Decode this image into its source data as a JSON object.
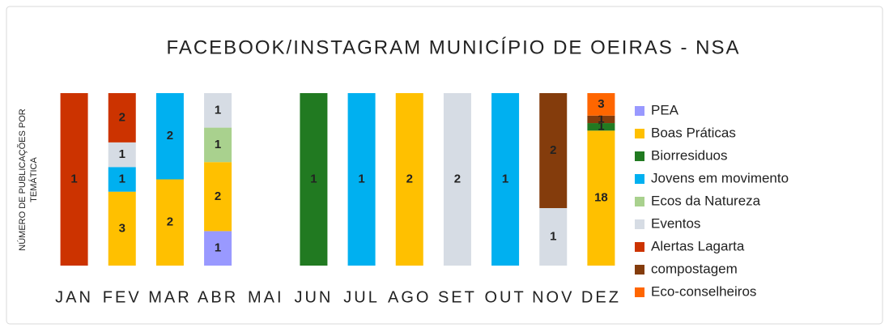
{
  "chart_data": {
    "type": "bar",
    "stacked": "percent",
    "title": "FACEBOOK/INSTAGRAM MUNICÍPIO DE OEIRAS - NSA",
    "y_label": [
      "NÚMERO DE PUBLICAÇÕES POR",
      "TEMÁTICA"
    ],
    "legend": "right",
    "categories": [
      "JAN",
      "FEV",
      "MAR",
      "ABR",
      "MAI",
      "JUN",
      "JUL",
      "AGO",
      "SET",
      "OUT",
      "NOV",
      "DEZ"
    ],
    "series": [
      {
        "name": "PEA",
        "color": "#9999ff",
        "values": [
          null,
          null,
          null,
          1,
          null,
          null,
          null,
          null,
          null,
          null,
          null,
          null
        ]
      },
      {
        "name": "Boas Práticas",
        "color": "#ffc000",
        "values": [
          null,
          3,
          2,
          2,
          null,
          null,
          null,
          2,
          null,
          null,
          null,
          18
        ]
      },
      {
        "name": "Biorresiduos",
        "color": "#217a21",
        "values": [
          null,
          null,
          null,
          null,
          null,
          1,
          null,
          null,
          null,
          null,
          null,
          1
        ]
      },
      {
        "name": "Jovens em movimento",
        "color": "#00b0f0",
        "values": [
          null,
          1,
          2,
          null,
          null,
          null,
          1,
          null,
          null,
          1,
          null,
          null
        ]
      },
      {
        "name": "Ecos da Natureza",
        "color": "#a9d18e",
        "values": [
          null,
          null,
          null,
          1,
          null,
          null,
          null,
          null,
          null,
          null,
          null,
          null
        ]
      },
      {
        "name": "Eventos",
        "color": "#d6dce4",
        "values": [
          null,
          1,
          null,
          1,
          null,
          null,
          null,
          null,
          2,
          null,
          1,
          null
        ]
      },
      {
        "name": "Alertas Lagarta",
        "color": "#cc3300",
        "values": [
          1,
          2,
          null,
          null,
          null,
          null,
          null,
          null,
          null,
          null,
          null,
          null
        ]
      },
      {
        "name": "compostagem",
        "color": "#843c0c",
        "values": [
          null,
          null,
          null,
          null,
          null,
          null,
          null,
          null,
          null,
          null,
          2,
          1
        ]
      },
      {
        "name": "Eco-conselheiros",
        "color": "#ff6600",
        "values": [
          null,
          null,
          null,
          null,
          null,
          null,
          null,
          null,
          null,
          null,
          null,
          3
        ]
      }
    ]
  }
}
